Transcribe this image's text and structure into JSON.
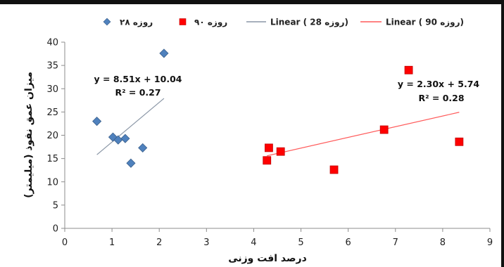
{
  "chart_data": {
    "type": "scatter",
    "xlabel": "درصد افت وزنی",
    "ylabel": "میزان عمق نفوذ (میلیمتر)",
    "xlim": [
      0,
      9
    ],
    "ylim": [
      0,
      40
    ],
    "xticks": [
      "0",
      "1",
      "2",
      "3",
      "4",
      "5",
      "6",
      "7",
      "8",
      "9"
    ],
    "yticks": [
      "0",
      "5",
      "10",
      "15",
      "20",
      "25",
      "30",
      "35",
      "40"
    ],
    "legend_placement": "top",
    "series": [
      {
        "name": "۲۸ روزه",
        "marker": "diamond",
        "color": "#4f81bd",
        "points": [
          {
            "x": 0.68,
            "y": 23.0
          },
          {
            "x": 1.02,
            "y": 19.6
          },
          {
            "x": 1.13,
            "y": 19.0
          },
          {
            "x": 1.28,
            "y": 19.3
          },
          {
            "x": 1.4,
            "y": 14.0
          },
          {
            "x": 1.65,
            "y": 17.3
          },
          {
            "x": 2.1,
            "y": 37.6
          }
        ]
      },
      {
        "name": "۹۰ روزه",
        "marker": "square",
        "color": "#ff0000",
        "points": [
          {
            "x": 4.28,
            "y": 14.6
          },
          {
            "x": 4.32,
            "y": 17.3
          },
          {
            "x": 4.57,
            "y": 16.5
          },
          {
            "x": 5.7,
            "y": 12.6
          },
          {
            "x": 6.76,
            "y": 21.2
          },
          {
            "x": 7.28,
            "y": 34.0
          },
          {
            "x": 8.35,
            "y": 18.6
          }
        ]
      }
    ],
    "trendlines": [
      {
        "name": "Linear ( 28 روزه)",
        "color": "#8a96a6",
        "slope": 8.51,
        "intercept": 10.04,
        "x_range": [
          0.68,
          2.1
        ],
        "equation": "y = 8.51x + 10.04",
        "r2": "R² = 0.27"
      },
      {
        "name": "Linear ( 90 روزه)",
        "color": "#ff5a5a",
        "slope": 2.3,
        "intercept": 5.74,
        "x_range": [
          4.28,
          8.35
        ],
        "equation": "y = 2.30x + 5.74",
        "r2": "R² = 0.28"
      }
    ]
  }
}
